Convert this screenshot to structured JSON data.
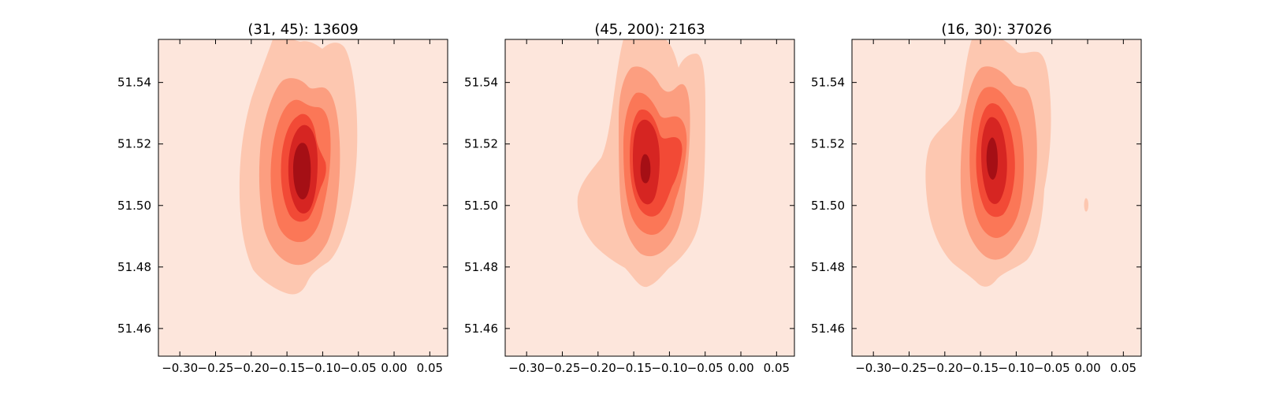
{
  "chart_data": [
    {
      "type": "contour",
      "title": "(31, 45): 13609",
      "xlim": [
        -0.33,
        0.075
      ],
      "ylim": [
        51.451,
        51.554
      ],
      "xticks": [
        "−0.30",
        "−0.25",
        "−0.20",
        "−0.15",
        "−0.10",
        "−0.05",
        "0.00",
        "0.05"
      ],
      "yticks": [
        "51.46",
        "51.48",
        "51.50",
        "51.52",
        "51.54"
      ],
      "peak": [
        -0.133,
        51.512
      ],
      "grid": false,
      "colormap": "Reds",
      "colors": [
        "#fde6dc",
        "#fdc7b0",
        "#fc9e80",
        "#fb7757",
        "#f24a36",
        "#d62522",
        "#a50f15"
      ]
    },
    {
      "type": "contour",
      "title": "(45, 200): 2163",
      "xlim": [
        -0.33,
        0.075
      ],
      "ylim": [
        51.451,
        51.554
      ],
      "xticks": [
        "−0.30",
        "−0.25",
        "−0.20",
        "−0.15",
        "−0.10",
        "−0.05",
        "0.00",
        "0.05"
      ],
      "yticks": [
        "51.46",
        "51.48",
        "51.50",
        "51.52",
        "51.54"
      ],
      "peak": [
        -0.137,
        51.512
      ],
      "grid": false,
      "colormap": "Reds",
      "colors": [
        "#fde6dc",
        "#fdc7b0",
        "#fc9e80",
        "#fb7757",
        "#f24a36",
        "#d62522",
        "#a50f15"
      ]
    },
    {
      "type": "contour",
      "title": "(16, 30): 37026",
      "xlim": [
        -0.33,
        0.075
      ],
      "ylim": [
        51.451,
        51.554
      ],
      "xticks": [
        "−0.30",
        "−0.25",
        "−0.20",
        "−0.15",
        "−0.10",
        "−0.05",
        "0.00",
        "0.05"
      ],
      "yticks": [
        "51.46",
        "51.48",
        "51.50",
        "51.52",
        "51.54"
      ],
      "peak": [
        -0.133,
        51.512
      ],
      "grid": false,
      "colormap": "Reds",
      "colors": [
        "#fde6dc",
        "#fdc7b0",
        "#fc9e80",
        "#fb7757",
        "#f24a36",
        "#d62522",
        "#a50f15"
      ]
    }
  ]
}
